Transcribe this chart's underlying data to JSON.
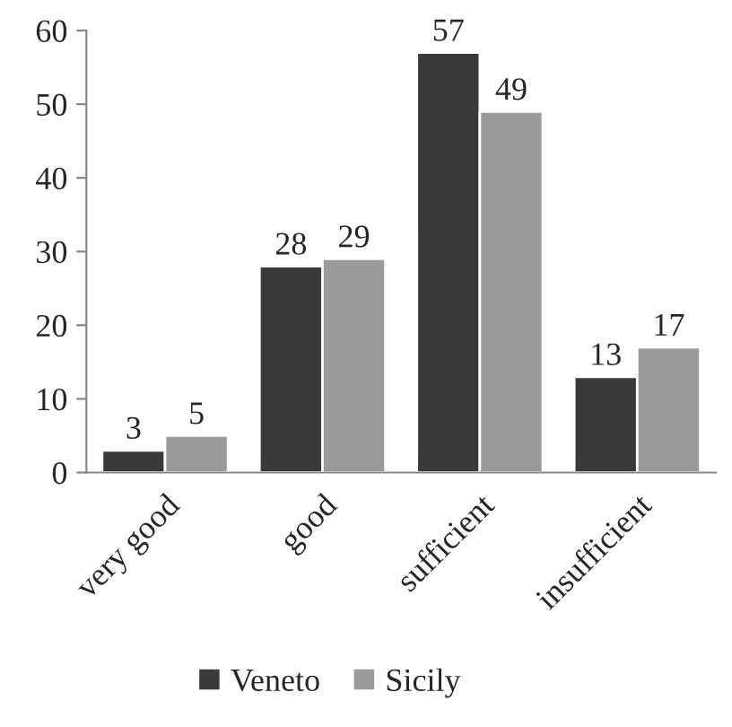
{
  "chart_data": {
    "type": "bar",
    "categories": [
      "very good",
      "good",
      "sufficient",
      "insufficient"
    ],
    "series": [
      {
        "name": "Veneto",
        "color": "#3a3a3a",
        "values": [
          3,
          28,
          57,
          13
        ]
      },
      {
        "name": "Sicily",
        "color": "#9a9a9a",
        "values": [
          5,
          29,
          49,
          17
        ]
      }
    ],
    "ylim": [
      0,
      60
    ],
    "yticks": [
      0,
      10,
      20,
      30,
      40,
      50,
      60
    ],
    "data_labels": true,
    "grid": false,
    "legend": "bottom"
  }
}
